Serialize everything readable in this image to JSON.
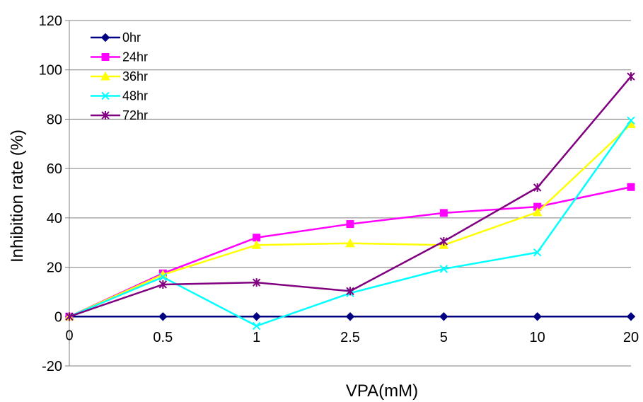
{
  "chart_data": {
    "type": "line",
    "categories": [
      "0",
      "0.5",
      "1",
      "2.5",
      "5",
      "10",
      "20"
    ],
    "xlabel": "VPA(mM)",
    "ylabel": "Inhibition rate (%)",
    "ylim": [
      -20,
      120
    ],
    "yticks": [
      -20,
      0,
      20,
      40,
      60,
      80,
      100,
      120
    ],
    "grid": true,
    "legend_position": "top-left",
    "series": [
      {
        "name": "0hr",
        "color": "#000080",
        "marker": "diamond",
        "values": [
          0,
          0,
          0,
          0,
          0,
          0,
          0
        ]
      },
      {
        "name": "24hr",
        "color": "#FF00FF",
        "marker": "square",
        "values": [
          0,
          17.5,
          32,
          37.5,
          42,
          44.5,
          52.5
        ]
      },
      {
        "name": "36hr",
        "color": "#FFFF00",
        "marker": "triangle",
        "values": [
          0,
          17,
          29,
          29.7,
          29,
          42.3,
          78
        ]
      },
      {
        "name": "48hr",
        "color": "#00FFFF",
        "marker": "x",
        "values": [
          0,
          16,
          -3.8,
          9.5,
          19.3,
          26,
          79.5
        ]
      },
      {
        "name": "72hr",
        "color": "#800080",
        "marker": "star",
        "values": [
          0,
          13,
          13.8,
          10.3,
          30.5,
          52.3,
          97.3
        ]
      }
    ]
  }
}
